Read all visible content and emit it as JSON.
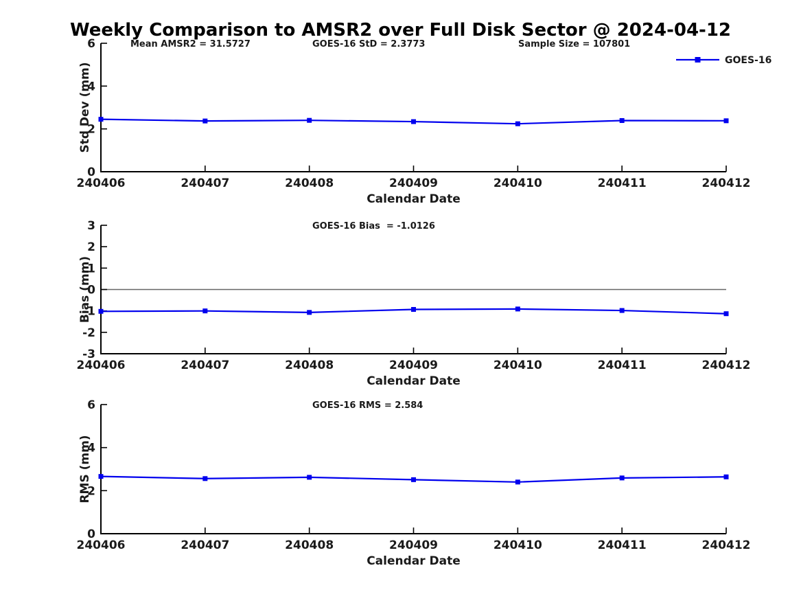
{
  "title": "Weekly Comparison to AMSR2 over Full Disk Sector @ 2024-04-12",
  "colors": {
    "series": "#0000EE",
    "zero_line": "#666666",
    "axis": "#000000",
    "text": "#1a1a1a"
  },
  "legend": {
    "label": "GOES-16"
  },
  "chart_data": [
    {
      "type": "line",
      "title": "",
      "xlabel": "Calendar Date",
      "ylabel": "Std Dev (mm)",
      "categories": [
        "240406",
        "240407",
        "240408",
        "240409",
        "240410",
        "240411",
        "240412"
      ],
      "series": [
        {
          "name": "GOES-16",
          "values": [
            2.45,
            2.37,
            2.4,
            2.34,
            2.24,
            2.39,
            2.38
          ]
        }
      ],
      "ylim": [
        0,
        6
      ],
      "yticks": [
        0,
        2,
        4,
        6
      ],
      "grid": false,
      "zero_line": false,
      "legend_visible": true,
      "legend_position": "top-right",
      "annotations": [
        "Mean AMSR2 = 31.5727",
        "GOES-16 StD = 2.3773",
        "Sample Size = 107801"
      ]
    },
    {
      "type": "line",
      "title": "",
      "xlabel": "Calendar Date",
      "ylabel": "Bias (mm)",
      "categories": [
        "240406",
        "240407",
        "240408",
        "240409",
        "240410",
        "240411",
        "240412"
      ],
      "series": [
        {
          "name": "GOES-16",
          "values": [
            -1.02,
            -1.0,
            -1.07,
            -0.93,
            -0.91,
            -0.98,
            -1.13
          ]
        }
      ],
      "ylim": [
        -3,
        3
      ],
      "yticks": [
        3,
        2,
        1,
        0,
        -1,
        -2,
        -3
      ],
      "grid": false,
      "zero_line": true,
      "legend_visible": false,
      "annotations": [
        "GOES-16 Bias  = -1.0126"
      ]
    },
    {
      "type": "line",
      "title": "",
      "xlabel": "Calendar Date",
      "ylabel": "RMS (mm)",
      "categories": [
        "240406",
        "240407",
        "240408",
        "240409",
        "240410",
        "240411",
        "240412"
      ],
      "series": [
        {
          "name": "GOES-16",
          "values": [
            2.66,
            2.56,
            2.62,
            2.51,
            2.4,
            2.59,
            2.64
          ]
        }
      ],
      "ylim": [
        0,
        6
      ],
      "yticks": [
        0,
        2,
        4,
        6
      ],
      "grid": false,
      "zero_line": false,
      "legend_visible": false,
      "annotations": [
        "GOES-16 RMS = 2.584"
      ]
    }
  ]
}
